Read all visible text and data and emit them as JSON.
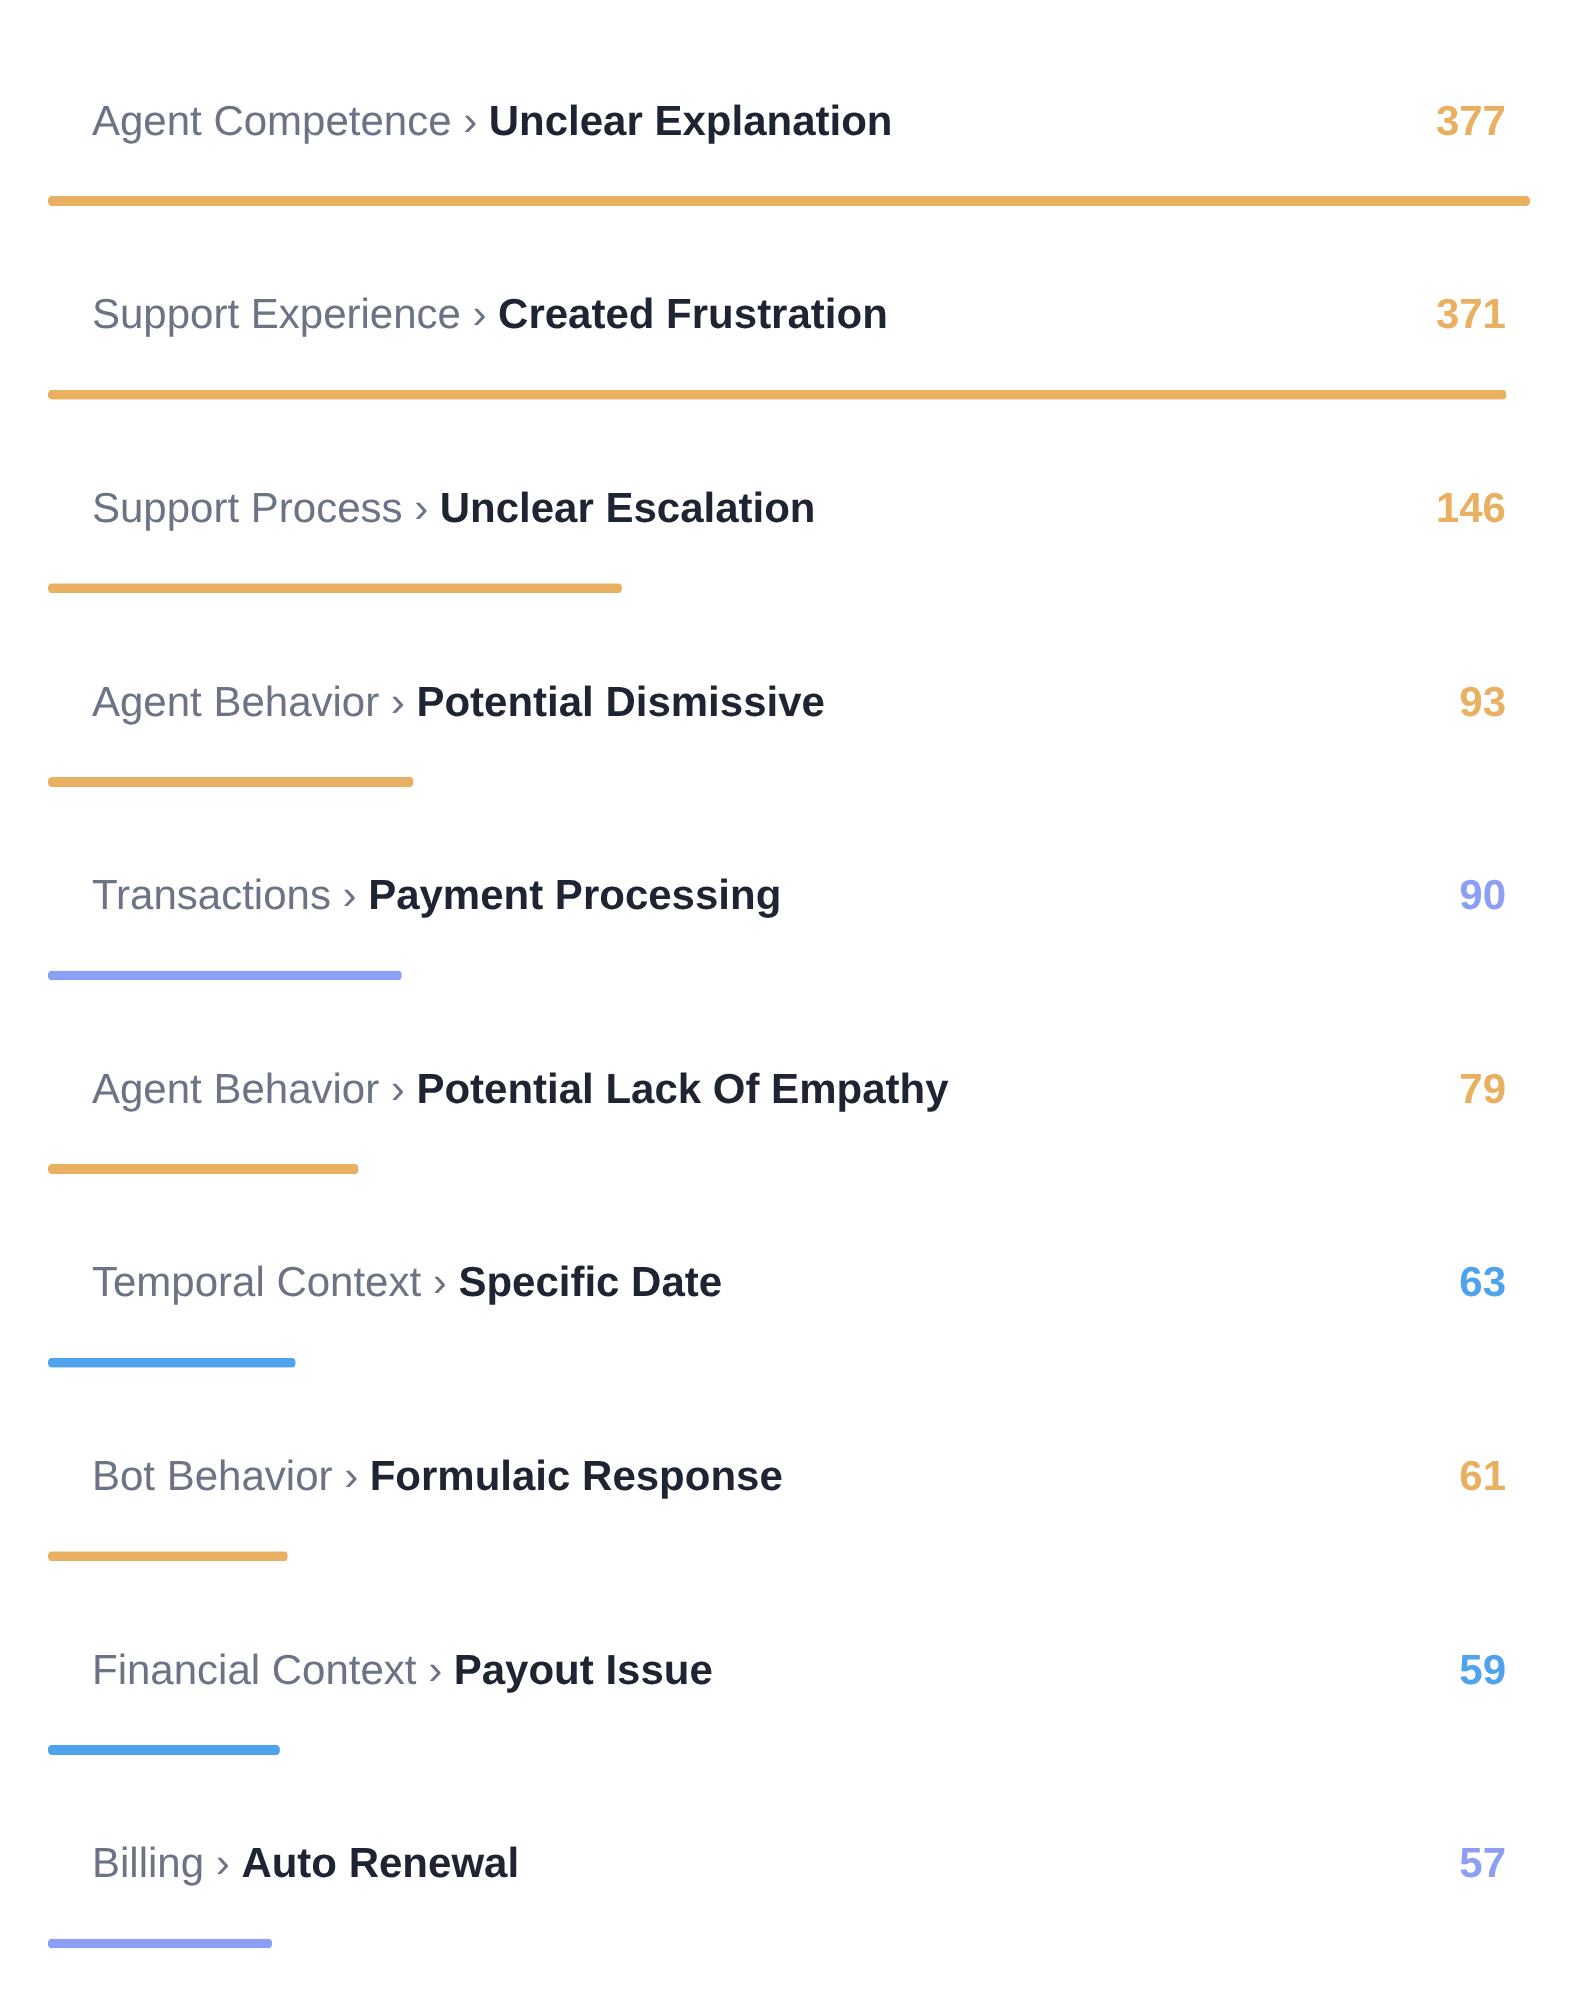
{
  "chart_data": {
    "type": "bar",
    "orientation": "horizontal",
    "data_labels": true,
    "categories": [
      "Agent Competence › Unclear Explanation",
      "Support Experience › Created Frustration",
      "Support Process › Unclear Escalation",
      "Agent Behavior › Potential Dismissive",
      "Transactions › Payment Processing",
      "Agent Behavior › Potential Lack Of Empathy",
      "Temporal Context › Specific Date",
      "Bot Behavior › Formulaic Response",
      "Financial Context › Payout Issue",
      "Billing › Auto Renewal"
    ],
    "values": [
      377,
      371,
      146,
      93,
      90,
      79,
      63,
      61,
      59,
      57
    ],
    "colors": [
      "#e8b060",
      "#e8b060",
      "#e8b060",
      "#e8b060",
      "#8c9ff5",
      "#e8b060",
      "#4ea3ec",
      "#e8b060",
      "#4ea3ec",
      "#8c9ff5"
    ]
  }
}
